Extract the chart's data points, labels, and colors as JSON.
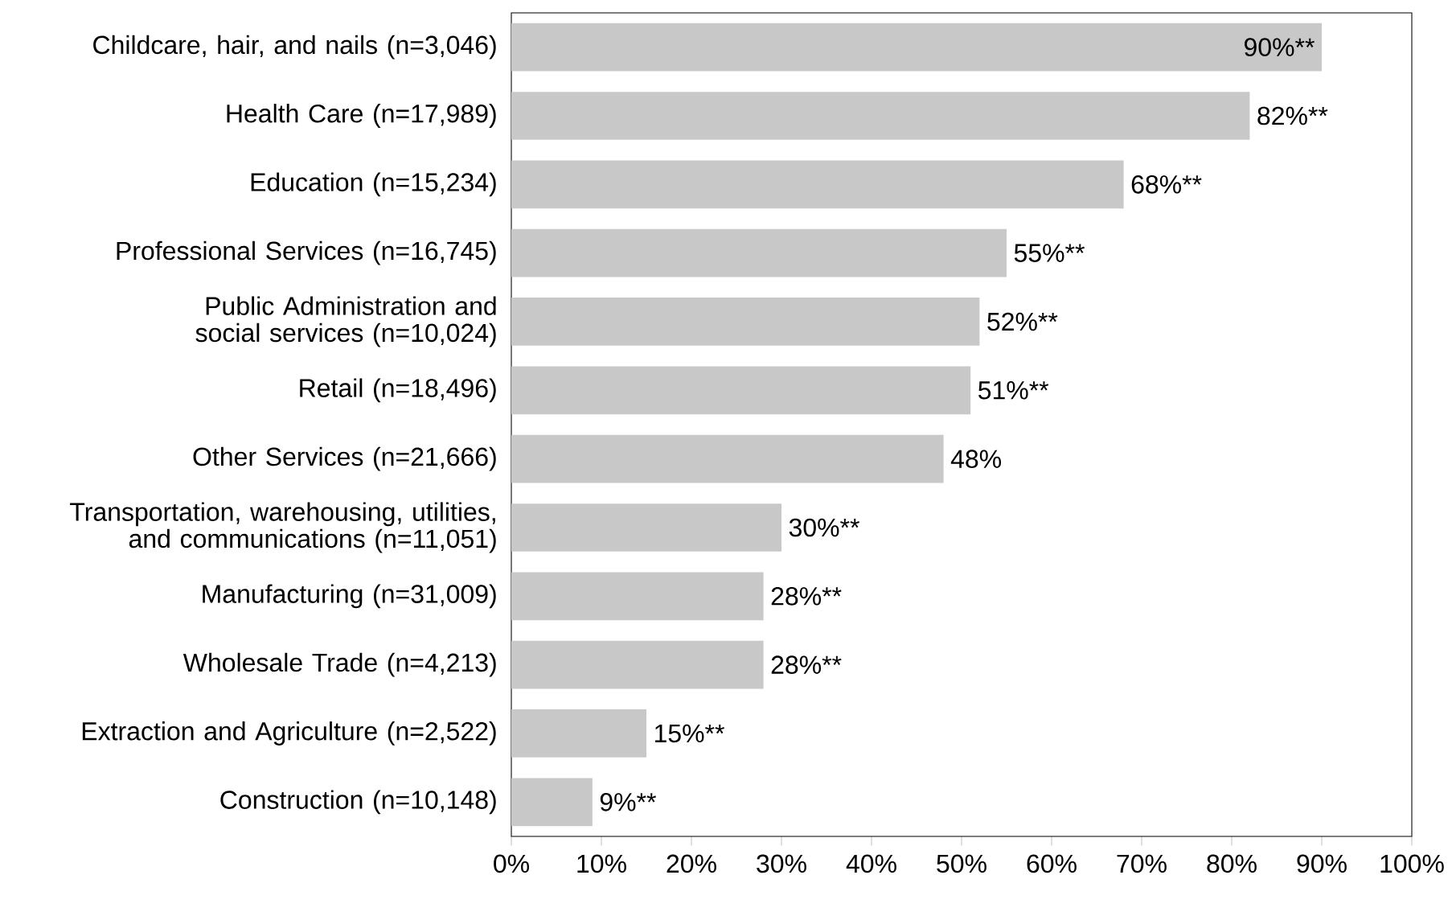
{
  "chart_data": {
    "type": "bar",
    "orientation": "horizontal",
    "categories": [
      "Childcare, hair, and nails (n=3,046)",
      "Health Care (n=17,989)",
      "Education (n=15,234)",
      "Professional Services (n=16,745)",
      "Public Administration and social services (n=10,024)",
      "Retail (n=18,496)",
      "Other Services (n=21,666)",
      "Transportation, warehousing, utilities, and communications (n=11,051)",
      "Manufacturing (n=31,009)",
      "Wholesale Trade (n=4,213)",
      "Extraction and Agriculture (n=2,522)",
      "Construction (n=10,148)"
    ],
    "values": [
      90,
      82,
      68,
      55,
      52,
      51,
      48,
      30,
      28,
      28,
      15,
      9
    ],
    "value_labels": [
      "90%**",
      "82%**",
      "68%**",
      "55%**",
      "52%**",
      "51%**",
      "48%",
      "30%**",
      "28%**",
      "28%**",
      "15%**",
      "9%**"
    ],
    "color": "#c8c8c8",
    "xlim": [
      0,
      100
    ],
    "xticks": [
      {
        "value": 0,
        "label": "0%"
      },
      {
        "value": 10,
        "label": "10%"
      },
      {
        "value": 20,
        "label": "20%"
      },
      {
        "value": 30,
        "label": "30%"
      },
      {
        "value": 40,
        "label": "40%"
      },
      {
        "value": 50,
        "label": "50%"
      },
      {
        "value": 60,
        "label": "60%"
      },
      {
        "value": 70,
        "label": "70%"
      },
      {
        "value": 80,
        "label": "80%"
      },
      {
        "value": 90,
        "label": "90%"
      },
      {
        "value": 100,
        "label": "100%"
      }
    ],
    "grid": false
  }
}
